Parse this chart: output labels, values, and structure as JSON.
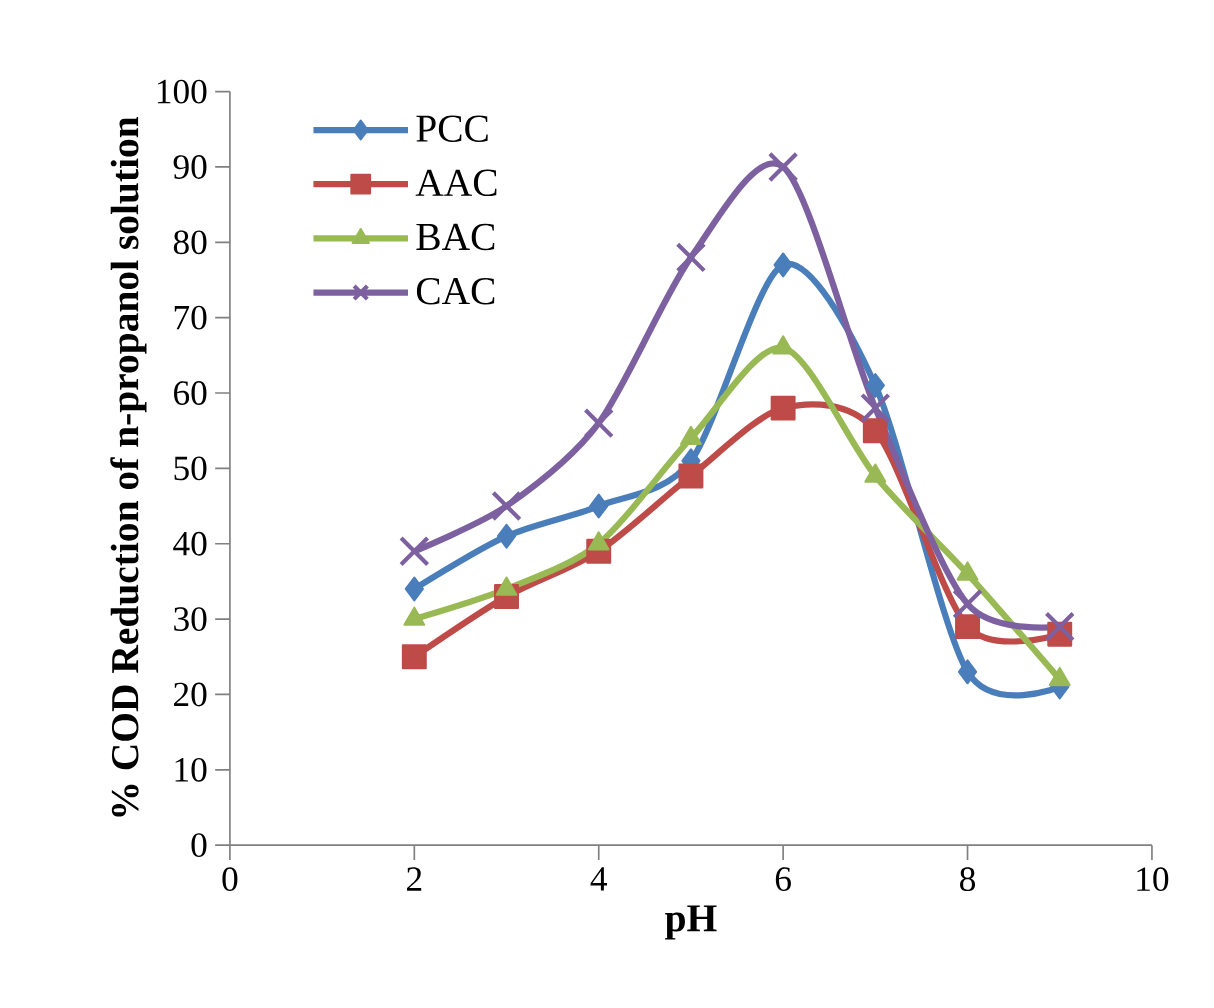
{
  "chart_data": {
    "type": "line",
    "xlabel": "pH",
    "ylabel": "% COD Reduction of n-propanol solution",
    "x": [
      2,
      3,
      4,
      5,
      6,
      7,
      8,
      9
    ],
    "series": [
      {
        "name": "PCC",
        "color": "#4a7ebb",
        "marker": "diamond",
        "values": [
          34,
          41,
          45,
          51,
          77,
          61,
          23,
          21
        ]
      },
      {
        "name": "AAC",
        "color": "#be4b48",
        "marker": "square",
        "values": [
          25,
          33,
          39,
          49,
          58,
          55,
          29,
          28
        ]
      },
      {
        "name": "BAC",
        "color": "#98b954",
        "marker": "triangle",
        "values": [
          30,
          34,
          40,
          54,
          66,
          49,
          36,
          22
        ]
      },
      {
        "name": "CAC",
        "color": "#7d60a0",
        "marker": "cross",
        "values": [
          39,
          45,
          56,
          78,
          90,
          58,
          32,
          29
        ]
      }
    ],
    "xlim": [
      0,
      10
    ],
    "xticks": [
      0,
      2,
      4,
      6,
      8,
      10
    ],
    "ylim": [
      0,
      100
    ],
    "yticks": [
      0,
      10,
      20,
      30,
      40,
      50,
      60,
      70,
      80,
      90,
      100
    ],
    "grid": false,
    "legend": "top left",
    "line_style": "solid"
  }
}
